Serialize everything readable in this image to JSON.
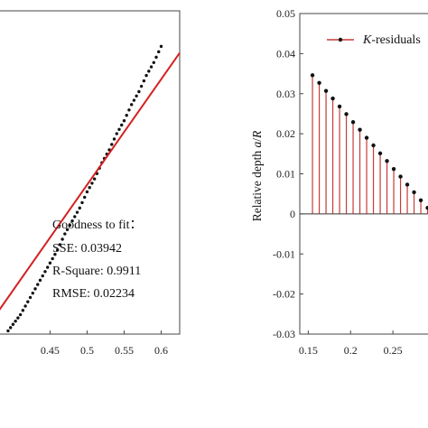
{
  "chart_data": [
    {
      "type": "scatter",
      "title": "",
      "xlabel": "",
      "ylabel": "",
      "xlim": [
        0.38,
        0.625
      ],
      "ylim": [
        0.0,
        1.0
      ],
      "xticks": [
        "0.45",
        "0.5",
        "0.55",
        "0.6"
      ],
      "xtick_values": [
        0.45,
        0.5,
        0.55,
        0.6
      ],
      "grid": false,
      "series": [
        {
          "kind": "dotted-points",
          "color": "#111111",
          "x": [
            0.38,
            0.39,
            0.4,
            0.41,
            0.42,
            0.43,
            0.44,
            0.45,
            0.46,
            0.47,
            0.48,
            0.49,
            0.5,
            0.51,
            0.52,
            0.53,
            0.54,
            0.55,
            0.56,
            0.57,
            0.58,
            0.59,
            0.6
          ],
          "y": [
            0.0,
            0.0,
            0.03,
            0.06,
            0.1,
            0.14,
            0.18,
            0.22,
            0.26,
            0.31,
            0.35,
            0.39,
            0.44,
            0.48,
            0.53,
            0.57,
            0.62,
            0.66,
            0.71,
            0.75,
            0.8,
            0.84,
            0.89
          ]
        },
        {
          "kind": "fit-line",
          "color": "#d42020",
          "x": [
            0.38,
            0.625
          ],
          "y": [
            0.07,
            0.87
          ]
        }
      ],
      "annotation": {
        "heading": "Goodness to fit：",
        "sse": "SSE: 0.03942",
        "rsquare": "R-Square: 0.9911",
        "rmse": "RMSE: 0.02234"
      }
    },
    {
      "type": "stem",
      "title": "",
      "xlabel": "",
      "ylabel": "Relative depth a/R",
      "xlim": [
        0.14,
        0.3
      ],
      "ylim": [
        -0.03,
        0.05
      ],
      "xticks": [
        "0.15",
        "0.2",
        "0.25"
      ],
      "xtick_values": [
        0.15,
        0.2,
        0.25
      ],
      "yticks": [
        "0.05",
        "0.04",
        "0.03",
        "0.02",
        "0.01",
        "0",
        "-0.01",
        "-0.02",
        "-0.03"
      ],
      "ytick_values": [
        0.05,
        0.04,
        0.03,
        0.02,
        0.01,
        0,
        -0.01,
        -0.02,
        -0.03
      ],
      "grid": false,
      "legend": {
        "position": "top-right",
        "label": "K-residuals"
      },
      "series": [
        {
          "name": "K-residuals",
          "color": "#c83a3a",
          "marker_color": "#111111",
          "x": [
            0.155,
            0.163,
            0.171,
            0.179,
            0.187,
            0.195,
            0.203,
            0.211,
            0.219,
            0.227,
            0.235,
            0.243,
            0.251,
            0.259,
            0.267,
            0.275,
            0.283,
            0.291
          ],
          "y": [
            0.0346,
            0.0327,
            0.0307,
            0.0288,
            0.0268,
            0.0249,
            0.0229,
            0.021,
            0.019,
            0.0171,
            0.0151,
            0.0132,
            0.0112,
            0.0093,
            0.0073,
            0.0054,
            0.0034,
            0.0015
          ]
        }
      ]
    }
  ],
  "colors": {
    "axis": "#444444",
    "fit": "#d42020",
    "stem": "#c83a3a"
  }
}
